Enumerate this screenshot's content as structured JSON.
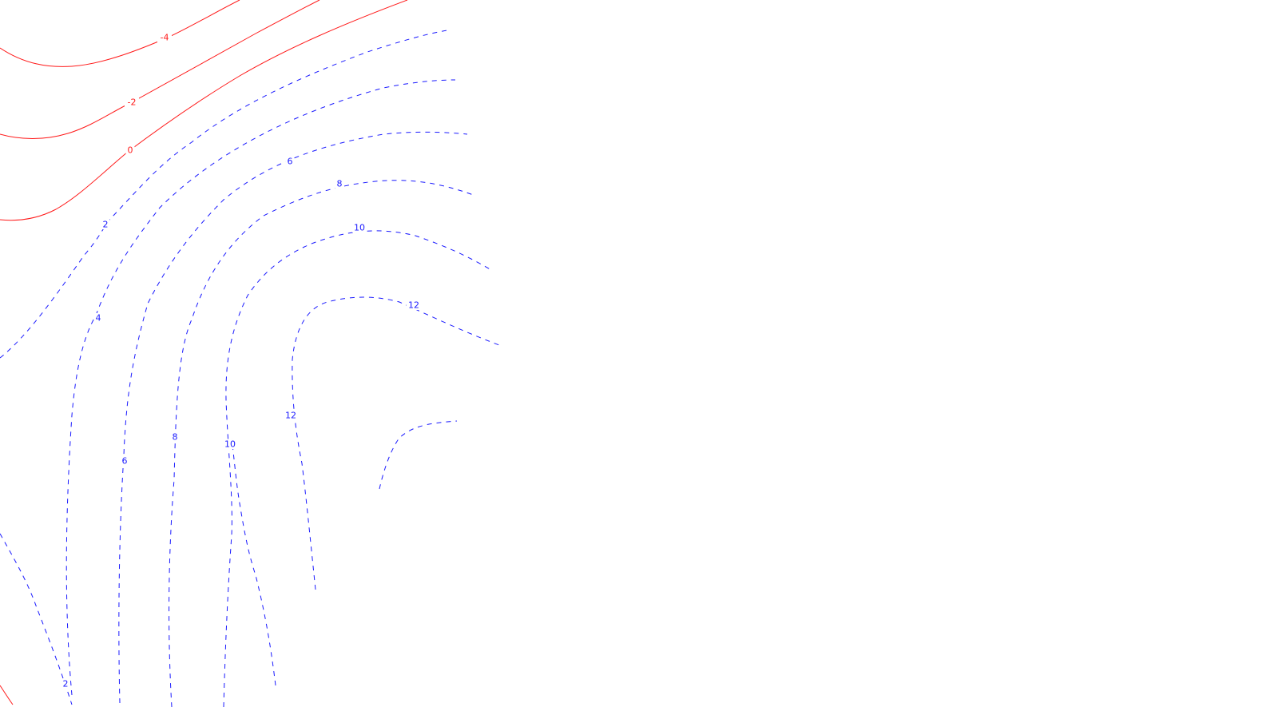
{
  "chart_data": {
    "type": "contour",
    "title": "",
    "xlabel": "",
    "ylabel": "",
    "grid": false,
    "legend": "none",
    "colors": {
      "negative": "#ff1a1a",
      "positive": "#1a1aff",
      "background": "#ffffff"
    },
    "line_styles": {
      "negative": "solid",
      "positive": "dashed"
    },
    "levels": [
      -4,
      -2,
      0,
      2,
      4,
      6,
      8,
      10,
      12
    ],
    "contour_labels": [
      "-4",
      "-2",
      "0",
      "2",
      "4",
      "6",
      "8",
      "10",
      "12",
      "2"
    ]
  }
}
